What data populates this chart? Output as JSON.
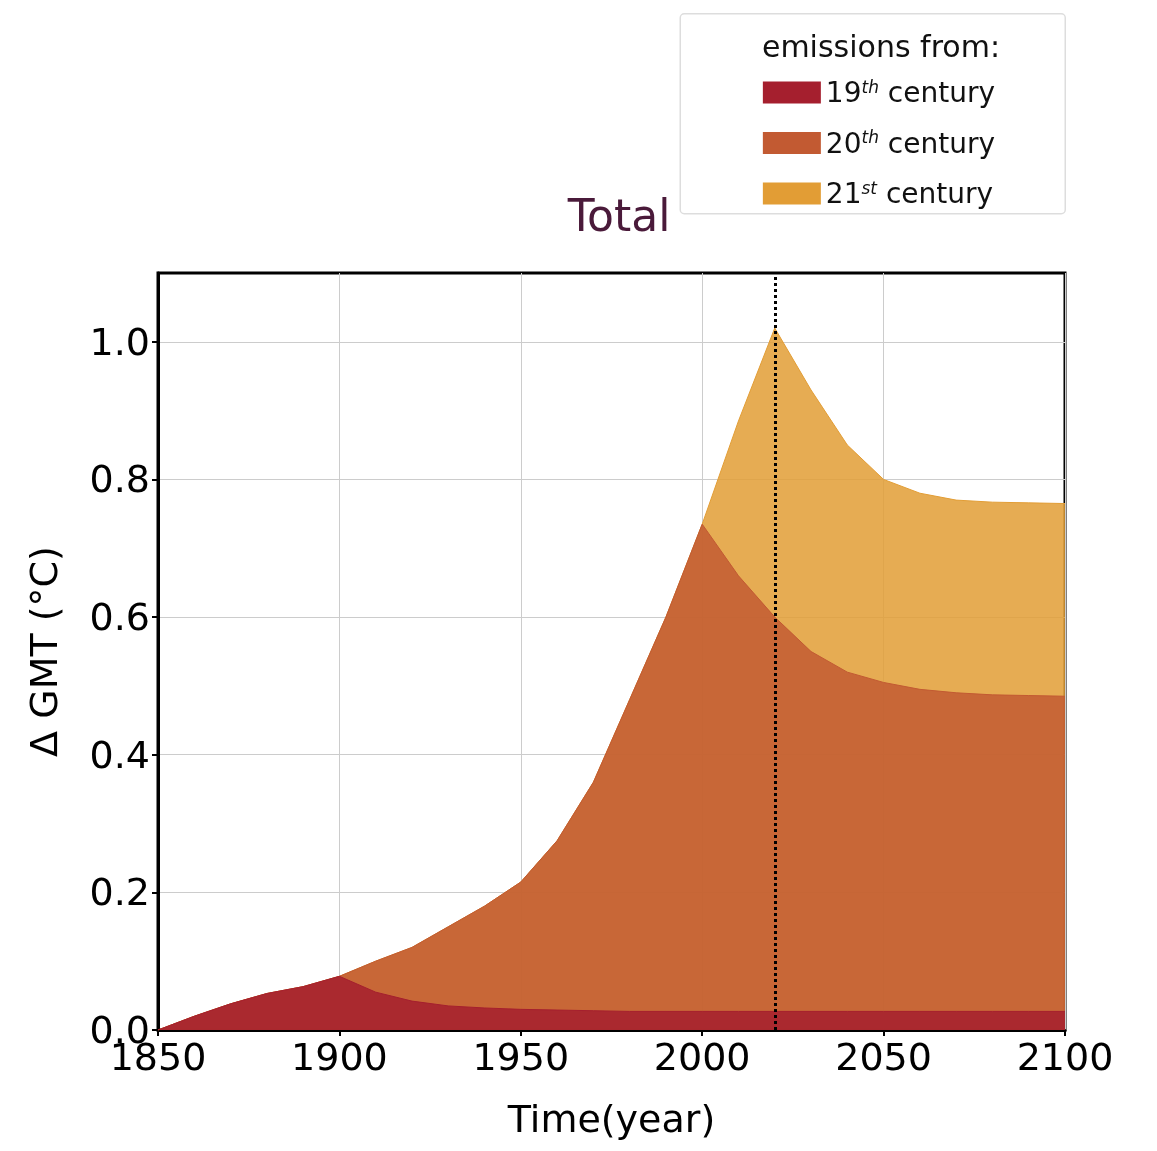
{
  "chart_data": {
    "type": "area",
    "title": "Total",
    "xlabel": "Time(year)",
    "ylabel": "Δ GMT (°C)",
    "legend_title": "emissions from:",
    "stacked": true,
    "x": [
      1850,
      1860,
      1870,
      1880,
      1890,
      1900,
      1910,
      1920,
      1930,
      1940,
      1950,
      1960,
      1970,
      1980,
      1990,
      2000,
      2010,
      2020,
      2030,
      2040,
      2050,
      2060,
      2070,
      2080,
      2090,
      2100
    ],
    "series": [
      {
        "name": "19$^{th}$ century",
        "color": "#a51f2e",
        "values": [
          0,
          0.02,
          0.038,
          0.053,
          0.063,
          0.078,
          0.055,
          0.042,
          0.035,
          0.032,
          0.03,
          0.029,
          0.028,
          0.027,
          0.027,
          0.027,
          0.027,
          0.027,
          0.027,
          0.027,
          0.027,
          0.027,
          0.027,
          0.027,
          0.027,
          0.027
        ]
      },
      {
        "name": "20$^{th}$ century",
        "color": "#c25a32",
        "values": [
          0,
          0,
          0,
          0,
          0,
          0,
          0.045,
          0.078,
          0.115,
          0.148,
          0.185,
          0.246,
          0.332,
          0.453,
          0.573,
          0.708,
          0.633,
          0.573,
          0.523,
          0.493,
          0.478,
          0.468,
          0.463,
          0.46,
          0.459,
          0.458
        ]
      },
      {
        "name": "21$^{st}$ century",
        "color": "#e29d35",
        "values": [
          0,
          0,
          0,
          0,
          0,
          0,
          0,
          0,
          0,
          0,
          0,
          0,
          0,
          0,
          0,
          0,
          0.225,
          0.42,
          0.38,
          0.33,
          0.295,
          0.285,
          0.28,
          0.28,
          0.28,
          0.28
        ]
      }
    ],
    "xlim": [
      1850,
      2100
    ],
    "xticks": [
      1850,
      1900,
      1950,
      2000,
      2050,
      2100
    ],
    "ylim": [
      0,
      1.1
    ],
    "yticks": [
      {
        "value": 0,
        "label": "0.0"
      },
      0.2,
      0.4,
      0.6,
      0.8,
      {
        "value": 1,
        "label": "1.0"
      }
    ],
    "ref_lines": [
      {
        "axis": "x",
        "value": 2020,
        "color": "#000000",
        "line_style": "dotted"
      }
    ],
    "grid": true,
    "legend": "top right"
  }
}
